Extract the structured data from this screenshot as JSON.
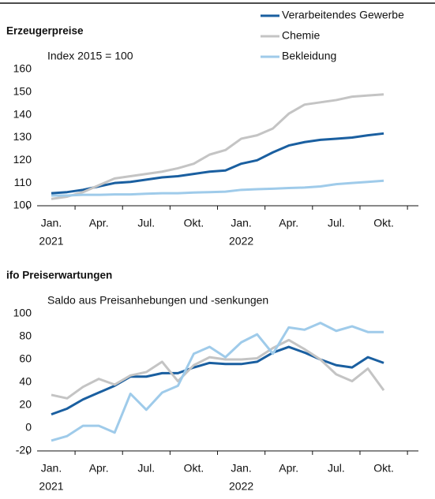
{
  "chart_data": [
    {
      "type": "line",
      "title": "Erzeugerpreise",
      "subtitle": "Index 2015 = 100",
      "categories": [
        "Jan.",
        null,
        null,
        "Apr.",
        null,
        null,
        "Jul.",
        null,
        null,
        "Okt.",
        null,
        null,
        "Jan.",
        null,
        null,
        "Apr.",
        null,
        null,
        "Jul.",
        null,
        null,
        "Okt."
      ],
      "category_years": [
        "2021",
        null,
        null,
        null,
        null,
        null,
        null,
        null,
        null,
        null,
        null,
        null,
        "2022",
        null,
        null,
        null,
        null,
        null,
        null,
        null,
        null,
        null
      ],
      "ylim": [
        100,
        160
      ],
      "yticks": [
        100,
        110,
        120,
        130,
        140,
        150,
        160
      ],
      "grid": false,
      "legend": "top-right",
      "series": [
        {
          "name": "Verarbeitendes Gewerbe",
          "color": "#1a5fa0",
          "values": [
            105.5,
            106,
            107,
            108.5,
            110,
            110.5,
            111.5,
            112.5,
            113,
            114,
            115,
            115.5,
            118.5,
            120,
            123.5,
            126.5,
            128,
            129,
            129.5,
            130,
            131,
            131.8
          ]
        },
        {
          "name": "Chemie",
          "color": "#c4c4c4",
          "values": [
            103,
            104,
            106,
            109,
            112,
            113,
            114,
            115,
            116.5,
            118.5,
            122.5,
            124.5,
            129.5,
            131,
            134,
            140.5,
            144.5,
            145.5,
            146.5,
            148,
            148.5,
            149
          ]
        },
        {
          "name": "Bekleidung",
          "color": "#9fcbea",
          "values": [
            104.5,
            104.5,
            104.8,
            104.8,
            105,
            105,
            105.3,
            105.5,
            105.5,
            105.8,
            106,
            106.2,
            107,
            107.3,
            107.5,
            107.8,
            108,
            108.5,
            109.5,
            110,
            110.5,
            111
          ]
        }
      ]
    },
    {
      "type": "line",
      "title": "ifo Preiserwartungen",
      "subtitle": "Saldo aus Preisanhebungen und -senkungen",
      "categories": [
        "Jan.",
        null,
        null,
        "Apr.",
        null,
        null,
        "Jul.",
        null,
        null,
        "Okt.",
        null,
        null,
        "Jan.",
        null,
        null,
        "Apr.",
        null,
        null,
        "Jul.",
        null,
        null,
        "Okt."
      ],
      "category_years": [
        "2021",
        null,
        null,
        null,
        null,
        null,
        null,
        null,
        null,
        null,
        null,
        null,
        "2022",
        null,
        null,
        null,
        null,
        null,
        null,
        null,
        null,
        null
      ],
      "ylim": [
        -20,
        100
      ],
      "yticks": [
        -20,
        0,
        20,
        40,
        60,
        80,
        100
      ],
      "grid": false,
      "series": [
        {
          "color": "#1a5fa0",
          "values": [
            12,
            17,
            25,
            31,
            37,
            45,
            45,
            48,
            48,
            53,
            57,
            56,
            56,
            58,
            66,
            71,
            66,
            60,
            55,
            53,
            62,
            57
          ]
        },
        {
          "color": "#c4c4c4",
          "values": [
            29,
            26,
            36,
            43,
            38,
            46,
            49,
            58,
            41,
            55,
            62,
            60,
            60,
            61,
            70,
            77,
            69,
            60,
            47,
            41,
            52,
            33
          ]
        },
        {
          "color": "#9fcbea",
          "values": [
            -11,
            -7,
            2,
            2,
            -4,
            30,
            16,
            31,
            37,
            65,
            71,
            62,
            75,
            82,
            65,
            88,
            86,
            92,
            85,
            89,
            84,
            84
          ]
        }
      ]
    }
  ]
}
